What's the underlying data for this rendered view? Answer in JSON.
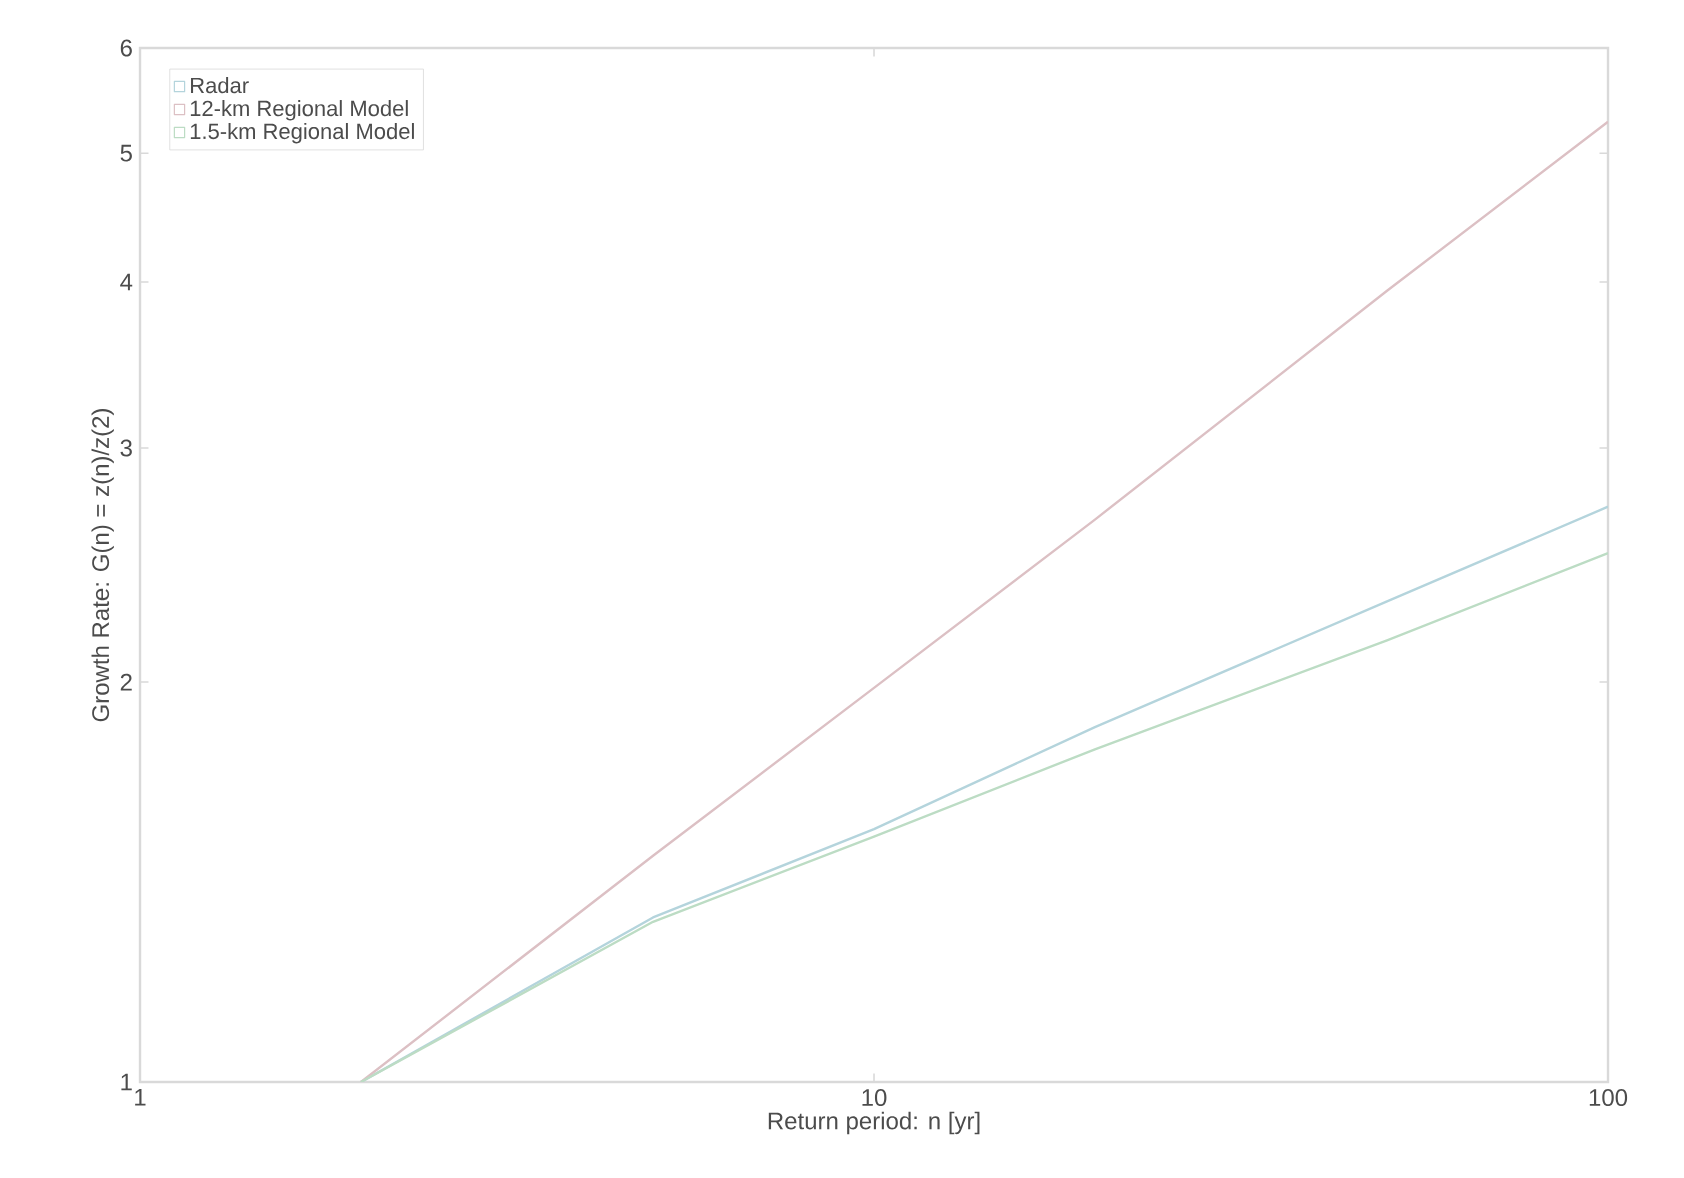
{
  "chart_data": {
    "type": "line",
    "xlabel": "Return period: n [yr]",
    "ylabel": "Growth Rate: G(n) = z(n)/z(2)",
    "log": "xy",
    "xlim": [
      1,
      100
    ],
    "ylim": [
      1,
      6
    ],
    "xticks": [
      1,
      10,
      100
    ],
    "yticks": [
      1,
      2,
      3,
      4,
      5,
      6
    ],
    "legend": "top left",
    "grid": false,
    "x": [
      2,
      5,
      10,
      20,
      50,
      100
    ],
    "series": [
      {
        "name": "Radar",
        "color": "#b4d4dc",
        "values": [
          1,
          1.33,
          1.55,
          1.85,
          2.3,
          2.71
        ]
      },
      {
        "name": "12-km Regional Model",
        "color": "#dcc0c4",
        "values": [
          1,
          1.48,
          1.98,
          2.65,
          3.94,
          5.28
        ]
      },
      {
        "name": "1.5-km Regional Model",
        "color": "#bcdcc4",
        "values": [
          1,
          1.32,
          1.53,
          1.78,
          2.15,
          2.5
        ]
      }
    ]
  }
}
